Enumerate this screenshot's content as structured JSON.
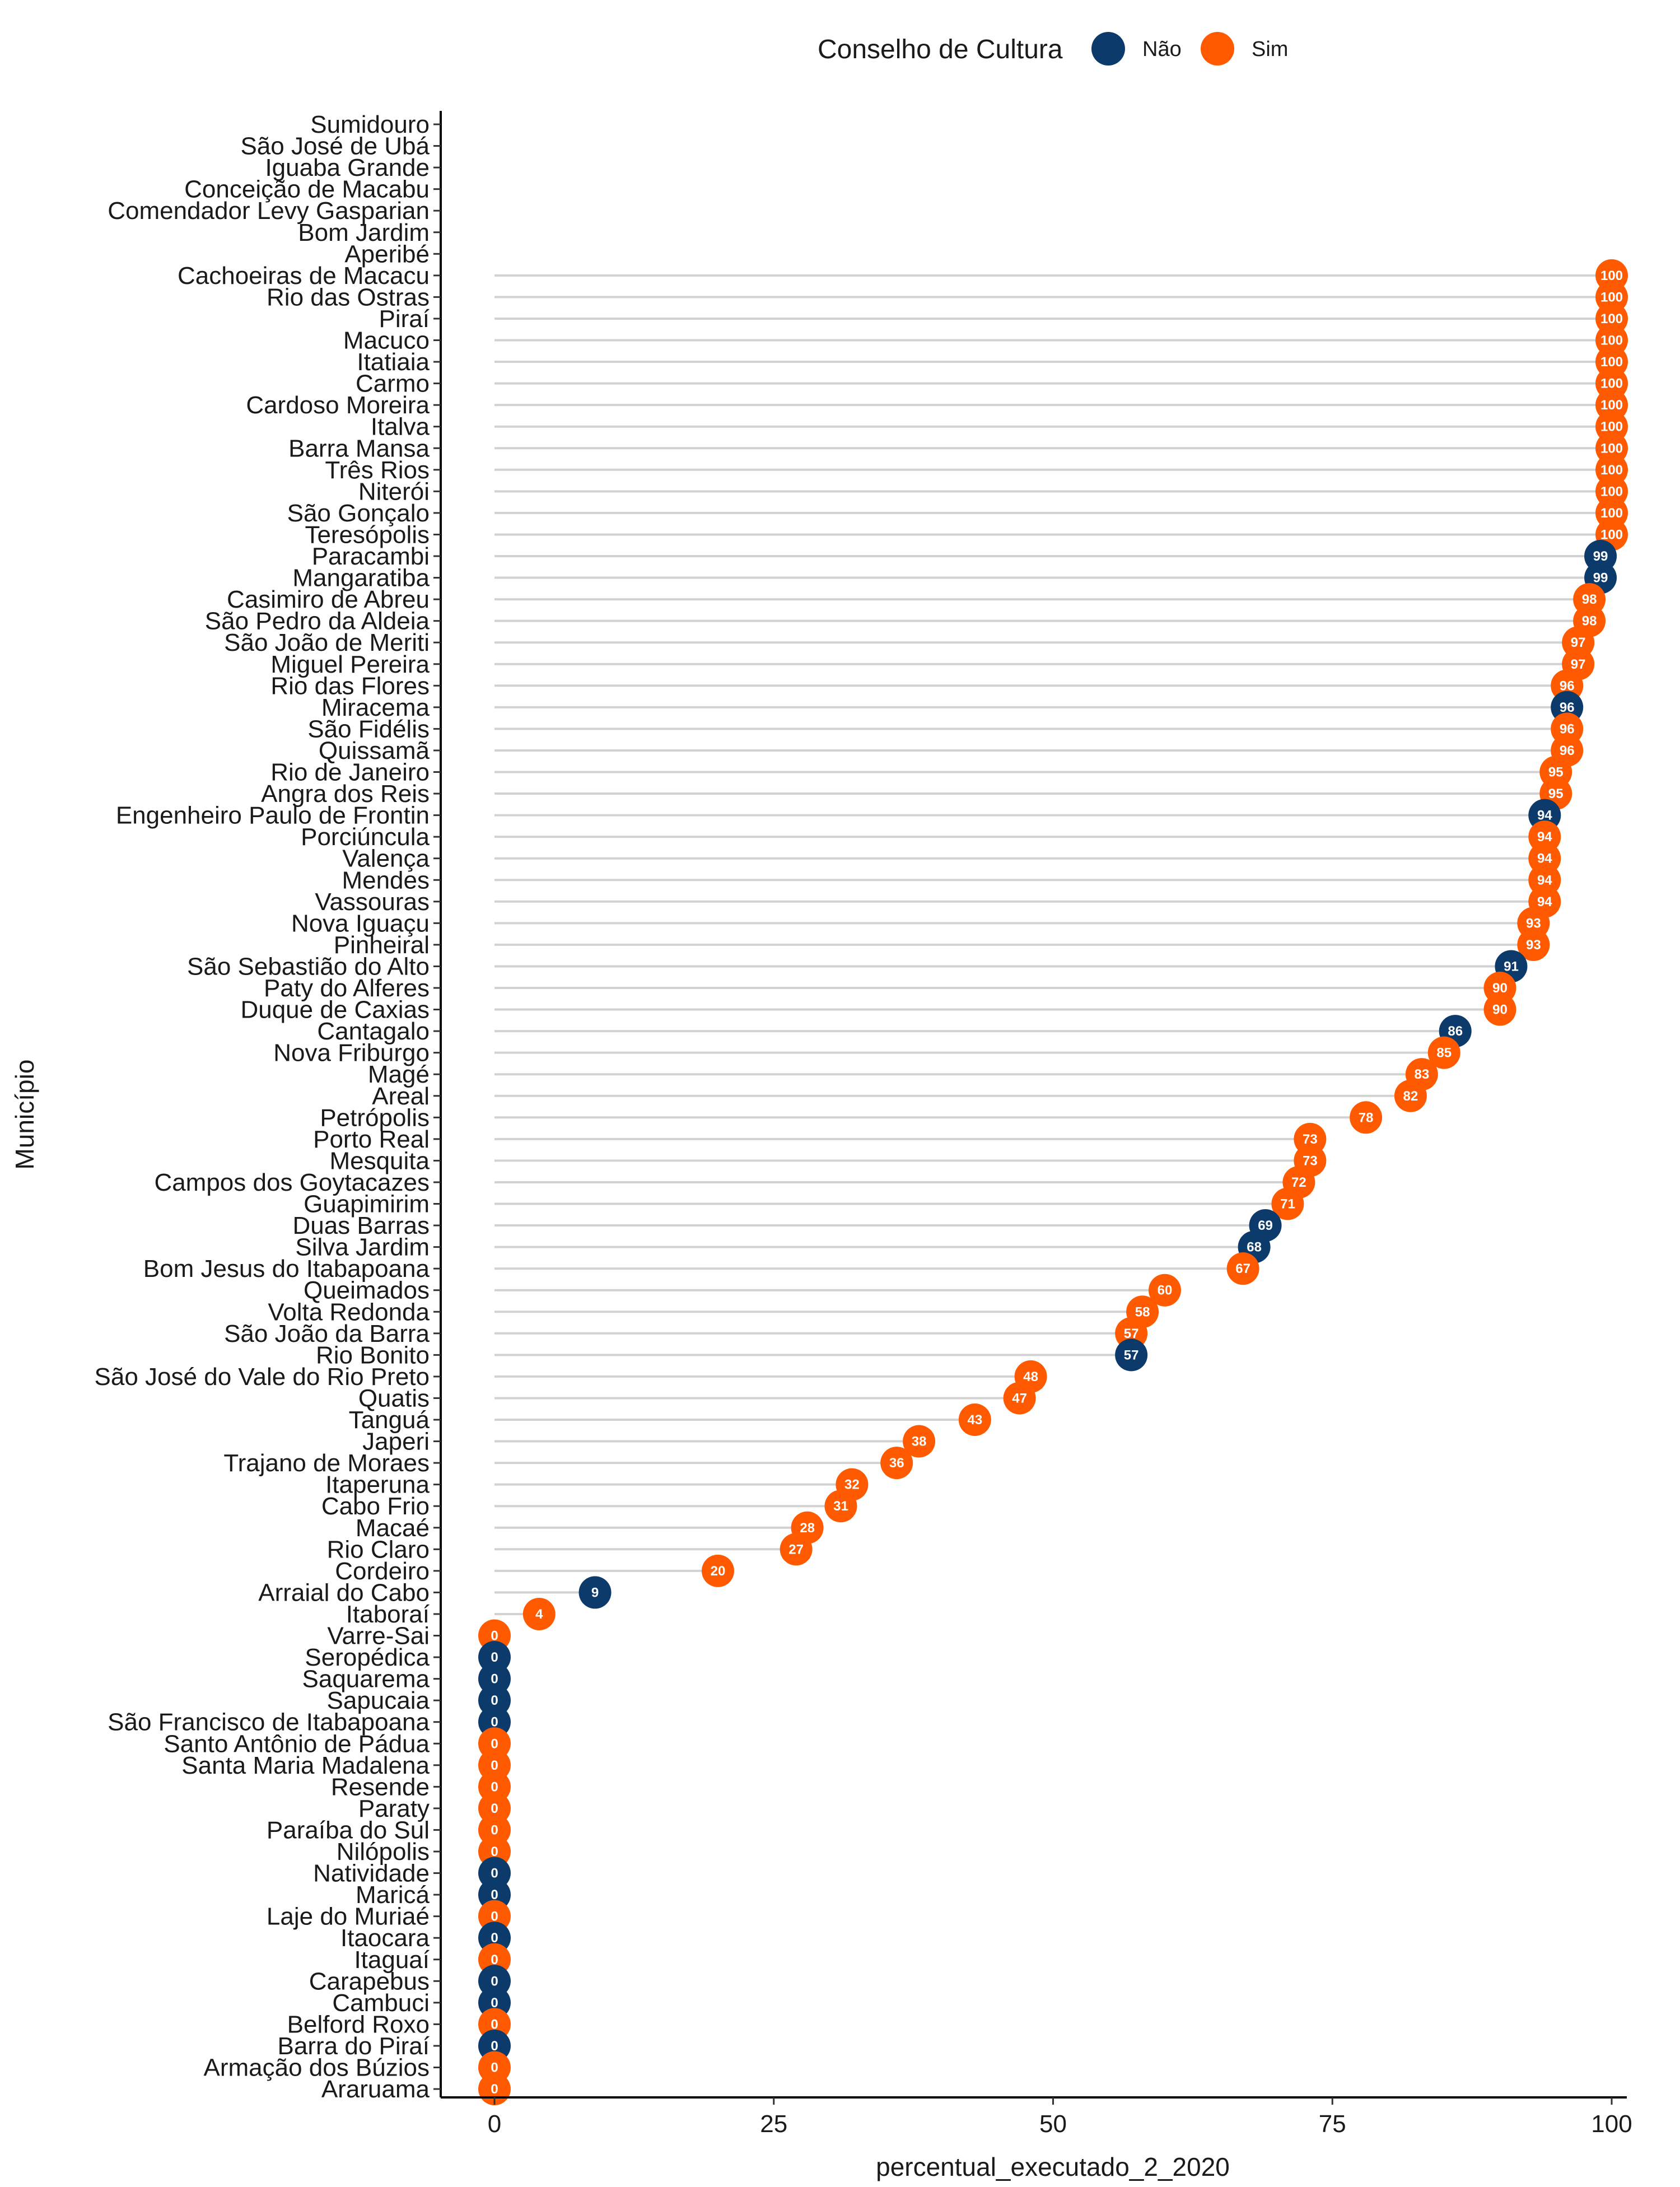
{
  "legend": {
    "title": "Conselho de Cultura",
    "items": [
      {
        "label": "Não",
        "color": "#0B3A6B"
      },
      {
        "label": "Sim",
        "color": "#FF5A00"
      }
    ]
  },
  "chart_data": {
    "type": "lollipop",
    "xlabel": "percentual_executado_2_2020",
    "ylabel": "Município",
    "xlim": [
      0,
      100
    ],
    "xticks": [
      0,
      25,
      50,
      75,
      100
    ],
    "grid": false,
    "legend_position": "top",
    "color_key": {
      "Não": "#0B3A6B",
      "Sim": "#FF5A00"
    },
    "points": [
      {
        "municipio": "Sumidouro",
        "value": null,
        "conselho": null
      },
      {
        "municipio": "São José de Ubá",
        "value": null,
        "conselho": null
      },
      {
        "municipio": "Iguaba Grande",
        "value": null,
        "conselho": null
      },
      {
        "municipio": "Conceição de Macabu",
        "value": null,
        "conselho": null
      },
      {
        "municipio": "Comendador Levy Gasparian",
        "value": null,
        "conselho": null
      },
      {
        "municipio": "Bom Jardim",
        "value": null,
        "conselho": null
      },
      {
        "municipio": "Aperibé",
        "value": null,
        "conselho": null
      },
      {
        "municipio": "Cachoeiras de Macacu",
        "value": 100,
        "conselho": "Sim"
      },
      {
        "municipio": "Rio das Ostras",
        "value": 100,
        "conselho": "Sim"
      },
      {
        "municipio": "Piraí",
        "value": 100,
        "conselho": "Sim"
      },
      {
        "municipio": "Macuco",
        "value": 100,
        "conselho": "Sim"
      },
      {
        "municipio": "Itatiaia",
        "value": 100,
        "conselho": "Sim"
      },
      {
        "municipio": "Carmo",
        "value": 100,
        "conselho": "Sim"
      },
      {
        "municipio": "Cardoso Moreira",
        "value": 100,
        "conselho": "Sim"
      },
      {
        "municipio": "Italva",
        "value": 100,
        "conselho": "Sim"
      },
      {
        "municipio": "Barra Mansa",
        "value": 100,
        "conselho": "Sim"
      },
      {
        "municipio": "Três Rios",
        "value": 100,
        "conselho": "Sim"
      },
      {
        "municipio": "Niterói",
        "value": 100,
        "conselho": "Sim"
      },
      {
        "municipio": "São Gonçalo",
        "value": 100,
        "conselho": "Sim"
      },
      {
        "municipio": "Teresópolis",
        "value": 100,
        "conselho": "Sim"
      },
      {
        "municipio": "Paracambi",
        "value": 99,
        "conselho": "Não"
      },
      {
        "municipio": "Mangaratiba",
        "value": 99,
        "conselho": "Não"
      },
      {
        "municipio": "Casimiro de Abreu",
        "value": 98,
        "conselho": "Sim"
      },
      {
        "municipio": "São Pedro da Aldeia",
        "value": 98,
        "conselho": "Sim"
      },
      {
        "municipio": "São João de Meriti",
        "value": 97,
        "conselho": "Sim"
      },
      {
        "municipio": "Miguel Pereira",
        "value": 97,
        "conselho": "Sim"
      },
      {
        "municipio": "Rio das Flores",
        "value": 96,
        "conselho": "Sim"
      },
      {
        "municipio": "Miracema",
        "value": 96,
        "conselho": "Não"
      },
      {
        "municipio": "São Fidélis",
        "value": 96,
        "conselho": "Sim"
      },
      {
        "municipio": "Quissamã",
        "value": 96,
        "conselho": "Sim"
      },
      {
        "municipio": "Rio de Janeiro",
        "value": 95,
        "conselho": "Sim"
      },
      {
        "municipio": "Angra dos Reis",
        "value": 95,
        "conselho": "Sim"
      },
      {
        "municipio": "Engenheiro Paulo de Frontin",
        "value": 94,
        "conselho": "Não"
      },
      {
        "municipio": "Porciúncula",
        "value": 94,
        "conselho": "Sim"
      },
      {
        "municipio": "Valença",
        "value": 94,
        "conselho": "Sim"
      },
      {
        "municipio": "Mendes",
        "value": 94,
        "conselho": "Sim"
      },
      {
        "municipio": "Vassouras",
        "value": 94,
        "conselho": "Sim"
      },
      {
        "municipio": "Nova Iguaçu",
        "value": 93,
        "conselho": "Sim"
      },
      {
        "municipio": "Pinheiral",
        "value": 93,
        "conselho": "Sim"
      },
      {
        "municipio": "São Sebastião do Alto",
        "value": 91,
        "conselho": "Não"
      },
      {
        "municipio": "Paty do Alferes",
        "value": 90,
        "conselho": "Sim"
      },
      {
        "municipio": "Duque de Caxias",
        "value": 90,
        "conselho": "Sim"
      },
      {
        "municipio": "Cantagalo",
        "value": 86,
        "conselho": "Não"
      },
      {
        "municipio": "Nova Friburgo",
        "value": 85,
        "conselho": "Sim"
      },
      {
        "municipio": "Magé",
        "value": 83,
        "conselho": "Sim"
      },
      {
        "municipio": "Areal",
        "value": 82,
        "conselho": "Sim"
      },
      {
        "municipio": "Petrópolis",
        "value": 78,
        "conselho": "Sim"
      },
      {
        "municipio": "Porto Real",
        "value": 73,
        "conselho": "Sim"
      },
      {
        "municipio": "Mesquita",
        "value": 73,
        "conselho": "Sim"
      },
      {
        "municipio": "Campos dos Goytacazes",
        "value": 72,
        "conselho": "Sim"
      },
      {
        "municipio": "Guapimirim",
        "value": 71,
        "conselho": "Sim"
      },
      {
        "municipio": "Duas Barras",
        "value": 69,
        "conselho": "Não"
      },
      {
        "municipio": "Silva Jardim",
        "value": 68,
        "conselho": "Não"
      },
      {
        "municipio": "Bom Jesus do Itabapoana",
        "value": 67,
        "conselho": "Sim"
      },
      {
        "municipio": "Queimados",
        "value": 60,
        "conselho": "Sim"
      },
      {
        "municipio": "Volta Redonda",
        "value": 58,
        "conselho": "Sim"
      },
      {
        "municipio": "São João da Barra",
        "value": 57,
        "conselho": "Sim"
      },
      {
        "municipio": "Rio Bonito",
        "value": 57,
        "conselho": "Não"
      },
      {
        "municipio": "São José do Vale do Rio Preto",
        "value": 48,
        "conselho": "Sim"
      },
      {
        "municipio": "Quatis",
        "value": 47,
        "conselho": "Sim"
      },
      {
        "municipio": "Tanguá",
        "value": 43,
        "conselho": "Sim"
      },
      {
        "municipio": "Japeri",
        "value": 38,
        "conselho": "Sim"
      },
      {
        "municipio": "Trajano de Moraes",
        "value": 36,
        "conselho": "Sim"
      },
      {
        "municipio": "Itaperuna",
        "value": 32,
        "conselho": "Sim"
      },
      {
        "municipio": "Cabo Frio",
        "value": 31,
        "conselho": "Sim"
      },
      {
        "municipio": "Macaé",
        "value": 28,
        "conselho": "Sim"
      },
      {
        "municipio": "Rio Claro",
        "value": 27,
        "conselho": "Sim"
      },
      {
        "municipio": "Cordeiro",
        "value": 20,
        "conselho": "Sim"
      },
      {
        "municipio": "Arraial do Cabo",
        "value": 9,
        "conselho": "Não"
      },
      {
        "municipio": "Itaboraí",
        "value": 4,
        "conselho": "Sim"
      },
      {
        "municipio": "Varre-Sai",
        "value": 0,
        "conselho": "Sim"
      },
      {
        "municipio": "Seropédica",
        "value": 0,
        "conselho": "Não"
      },
      {
        "municipio": "Saquarema",
        "value": 0,
        "conselho": "Não"
      },
      {
        "municipio": "Sapucaia",
        "value": 0,
        "conselho": "Não"
      },
      {
        "municipio": "São Francisco de Itabapoana",
        "value": 0,
        "conselho": "Não"
      },
      {
        "municipio": "Santo Antônio de Pádua",
        "value": 0,
        "conselho": "Sim"
      },
      {
        "municipio": "Santa Maria Madalena",
        "value": 0,
        "conselho": "Sim"
      },
      {
        "municipio": "Resende",
        "value": 0,
        "conselho": "Sim"
      },
      {
        "municipio": "Paraty",
        "value": 0,
        "conselho": "Sim"
      },
      {
        "municipio": "Paraíba do Sul",
        "value": 0,
        "conselho": "Sim"
      },
      {
        "municipio": "Nilópolis",
        "value": 0,
        "conselho": "Sim"
      },
      {
        "municipio": "Natividade",
        "value": 0,
        "conselho": "Não"
      },
      {
        "municipio": "Maricá",
        "value": 0,
        "conselho": "Não"
      },
      {
        "municipio": "Laje do Muriaé",
        "value": 0,
        "conselho": "Sim"
      },
      {
        "municipio": "Itaocara",
        "value": 0,
        "conselho": "Não"
      },
      {
        "municipio": "Itaguaí",
        "value": 0,
        "conselho": "Sim"
      },
      {
        "municipio": "Carapebus",
        "value": 0,
        "conselho": "Não"
      },
      {
        "municipio": "Cambuci",
        "value": 0,
        "conselho": "Não"
      },
      {
        "municipio": "Belford Roxo",
        "value": 0,
        "conselho": "Sim"
      },
      {
        "municipio": "Barra do Piraí",
        "value": 0,
        "conselho": "Não"
      },
      {
        "municipio": "Armação dos Búzios",
        "value": 0,
        "conselho": "Sim"
      },
      {
        "municipio": "Araruama",
        "value": 0,
        "conselho": "Sim"
      }
    ]
  }
}
